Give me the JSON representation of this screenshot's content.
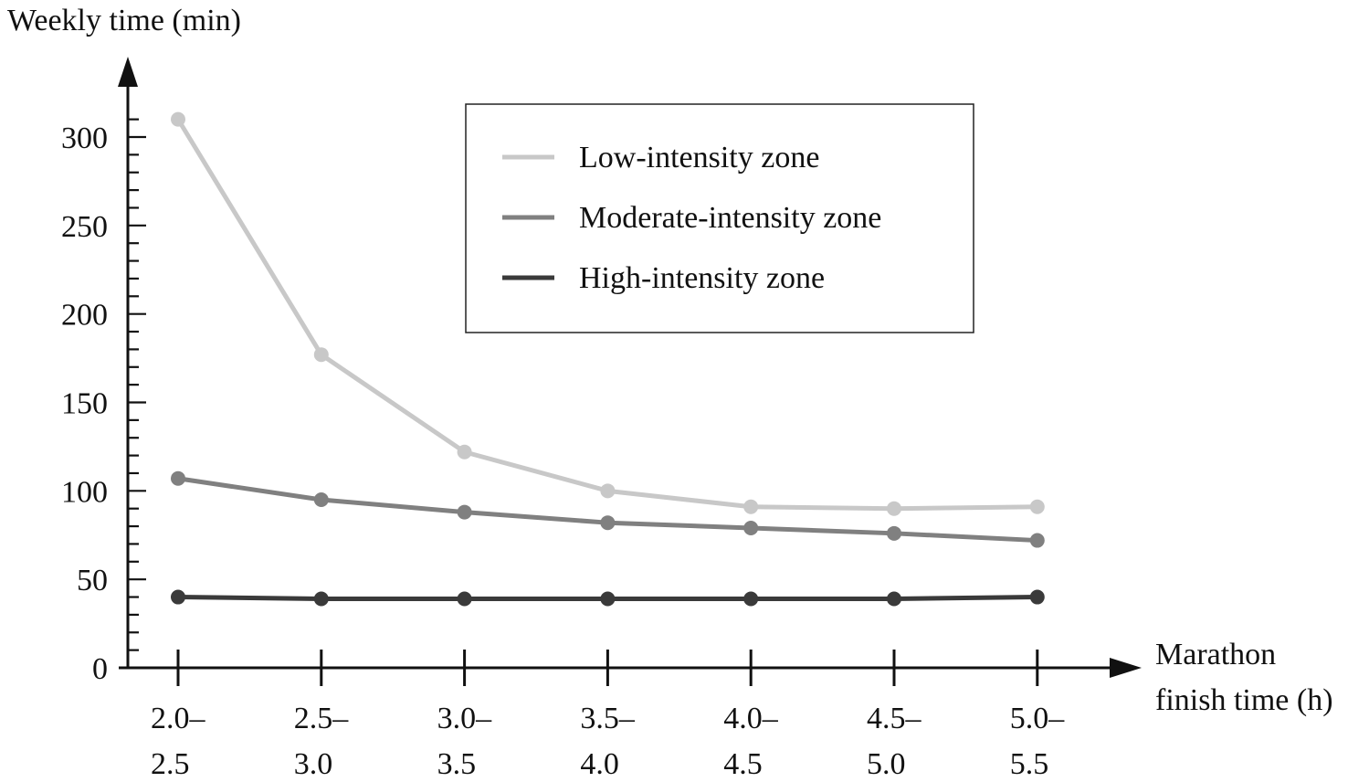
{
  "chart_data": {
    "type": "line",
    "title": "",
    "ylabel": "Weekly time (min)",
    "xlabel_lines": [
      "Marathon",
      "finish time (h)"
    ],
    "categories": [
      [
        "2.0–",
        "2.5"
      ],
      [
        "2.5–",
        "3.0"
      ],
      [
        "3.0–",
        "3.5"
      ],
      [
        "3.5–",
        "4.0"
      ],
      [
        "4.0–",
        "4.5"
      ],
      [
        "4.5–",
        "5.0"
      ],
      [
        "5.0–",
        "5.5"
      ]
    ],
    "ylim": [
      0,
      300
    ],
    "yticks": [
      0,
      50,
      100,
      150,
      200,
      250,
      300
    ],
    "yminor_step": 10,
    "grid": false,
    "legend_position": "top-center",
    "series": [
      {
        "name": "Low-intensity zone",
        "color": "#c8c8c8",
        "values": [
          310,
          177,
          122,
          100,
          91,
          90,
          91
        ]
      },
      {
        "name": "Moderate-intensity zone",
        "color": "#808080",
        "values": [
          107,
          95,
          88,
          82,
          79,
          76,
          72
        ]
      },
      {
        "name": "High-intensity zone",
        "color": "#3a3a3a",
        "values": [
          40,
          39,
          39,
          39,
          39,
          39,
          40
        ]
      }
    ]
  }
}
